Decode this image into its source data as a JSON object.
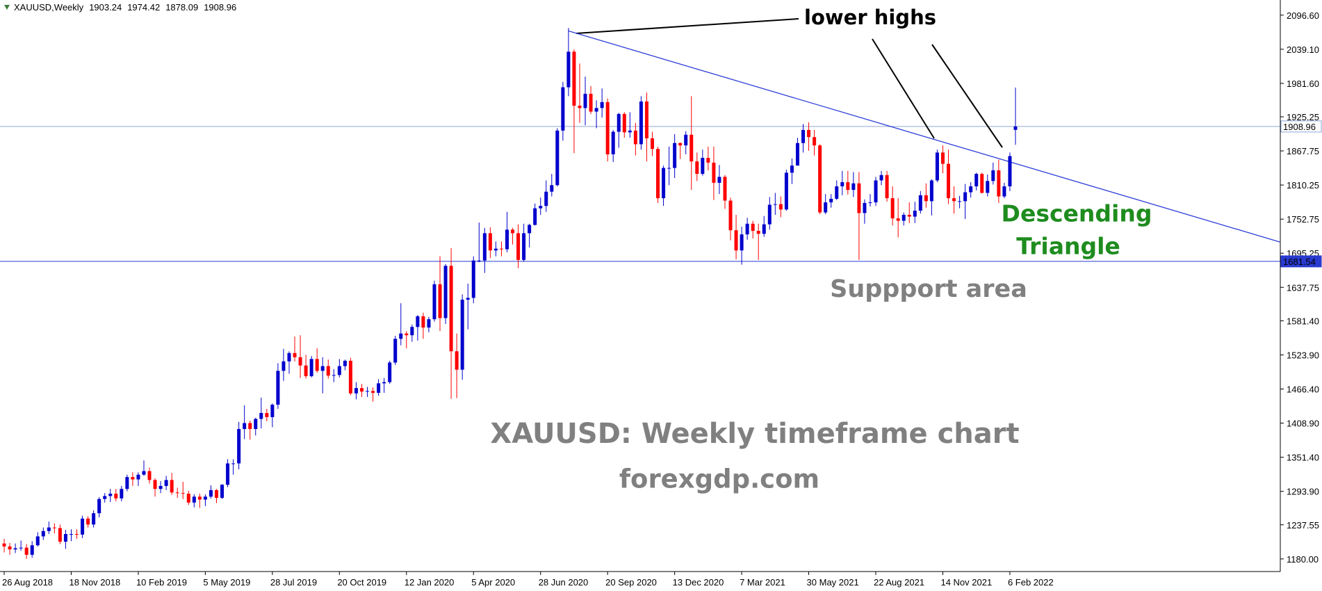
{
  "chart_data": {
    "type": "candlestick",
    "title": "XAUUSD,Weekly",
    "categories": [
      "26 Aug 2018",
      null,
      null,
      null,
      null,
      null,
      null,
      null,
      null,
      null,
      null,
      null,
      "18 Nov 2018",
      null,
      null,
      null,
      null,
      null,
      null,
      null,
      null,
      null,
      null,
      null,
      "10 Feb 2019",
      null,
      null,
      null,
      null,
      null,
      null,
      null,
      null,
      null,
      null,
      null,
      "5 May 2019",
      null,
      null,
      null,
      null,
      null,
      null,
      null,
      null,
      null,
      null,
      null,
      "28 Jul 2019",
      null,
      null,
      null,
      null,
      null,
      null,
      null,
      null,
      null,
      null,
      null,
      "20 Oct 2019",
      null,
      null,
      null,
      null,
      null,
      null,
      null,
      null,
      null,
      null,
      null,
      "12 Jan 2020",
      null,
      null,
      null,
      null,
      null,
      null,
      null,
      null,
      null,
      null,
      null,
      "5 Apr 2020",
      null,
      null,
      null,
      null,
      null,
      null,
      null,
      null,
      null,
      null,
      null,
      "28 Jun 2020",
      null,
      null,
      null,
      null,
      null,
      null,
      null,
      null,
      null,
      null,
      null,
      "20 Sep 2020",
      null,
      null,
      null,
      null,
      null,
      null,
      null,
      null,
      null,
      null,
      null,
      "13 Dec 2020",
      null,
      null,
      null,
      null,
      null,
      null,
      null,
      null,
      null,
      null,
      null,
      "7 Mar 2021",
      null,
      null,
      null,
      null,
      null,
      null,
      null,
      null,
      null,
      null,
      null,
      "30 May 2021",
      null,
      null,
      null,
      null,
      null,
      null,
      null,
      null,
      null,
      null,
      null,
      "22 Aug 2021",
      null,
      null,
      null,
      null,
      null,
      null,
      null,
      null,
      null,
      null,
      null,
      "14 Nov 2021",
      null,
      null,
      null,
      null,
      null,
      null,
      null,
      null,
      null,
      null,
      null,
      "6 Feb 2022",
      null
    ],
    "open": [
      1206,
      1201,
      1196,
      1198,
      1199,
      1187,
      1203,
      1218,
      1227,
      1233,
      1232,
      1209,
      1222,
      1222,
      1221,
      1248,
      1238,
      1257,
      1281,
      1286,
      1290,
      1282,
      1298,
      1318,
      1314,
      1322,
      1328,
      1313,
      1298,
      1303,
      1313,
      1292,
      1291,
      1290,
      1275,
      1285,
      1280,
      1285,
      1296,
      1283,
      1305,
      1341,
      1341,
      1399,
      1409,
      1399,
      1416,
      1426,
      1419,
      1440,
      1497,
      1513,
      1527,
      1520,
      1506,
      1488,
      1517,
      1497,
      1505,
      1489,
      1490,
      1505,
      1514,
      1459,
      1468,
      1462,
      1463,
      1460,
      1476,
      1478,
      1511,
      1551,
      1560,
      1557,
      1571,
      1589,
      1570,
      1584,
      1643,
      1586,
      1674,
      1530,
      1499,
      1617,
      1620,
      1683,
      1683,
      1729,
      1700,
      1703,
      1702,
      1735,
      1729,
      1684,
      1729,
      1743,
      1771,
      1775,
      1799,
      1810,
      1902,
      1975,
      2035,
      1944,
      1940,
      1964,
      1934,
      1940,
      1950,
      1862,
      1900,
      1930,
      1899,
      1902,
      1879,
      1951,
      1889,
      1871,
      1788,
      1839,
      1839,
      1881,
      1877,
      1895,
      1850,
      1829,
      1856,
      1848,
      1814,
      1824,
      1784,
      1734,
      1700,
      1727,
      1745,
      1733,
      1728,
      1744,
      1777,
      1778,
      1769,
      1831,
      1843,
      1881,
      1903,
      1891,
      1877,
      1764,
      1781,
      1787,
      1808,
      1815,
      1802,
      1813,
      1763,
      1780,
      1781,
      1818,
      1827,
      1788,
      1754,
      1750,
      1760,
      1757,
      1767,
      1793,
      1783,
      1818,
      1865,
      1846,
      1788,
      1783,
      1783,
      1798,
      1808,
      1829,
      1797,
      1817,
      1835,
      1791,
      1808,
      1903.24
    ],
    "high": [
      1214,
      1207,
      1206,
      1211,
      1205,
      1210,
      1225,
      1233,
      1243,
      1240,
      1238,
      1229,
      1230,
      1230,
      1253,
      1252,
      1262,
      1284,
      1291,
      1298,
      1298,
      1303,
      1322,
      1326,
      1326,
      1346,
      1334,
      1316,
      1311,
      1320,
      1325,
      1300,
      1310,
      1295,
      1289,
      1290,
      1289,
      1304,
      1298,
      1306,
      1348,
      1348,
      1411,
      1439,
      1413,
      1418,
      1452,
      1433,
      1442,
      1510,
      1534,
      1530,
      1555,
      1557,
      1524,
      1522,
      1535,
      1520,
      1516,
      1500,
      1517,
      1516,
      1519,
      1478,
      1475,
      1470,
      1469,
      1483,
      1485,
      1514,
      1556,
      1611,
      1564,
      1575,
      1591,
      1595,
      1588,
      1649,
      1690,
      1677,
      1704,
      1560,
      1626,
      1644,
      1690,
      1747,
      1738,
      1739,
      1715,
      1715,
      1765,
      1738,
      1744,
      1745,
      1745,
      1779,
      1789,
      1818,
      1829,
      1906,
      1984,
      2075,
      2039,
      2015,
      1993,
      1977,
      1953,
      1973,
      1956,
      1903,
      1932,
      1933,
      1933,
      1915,
      1960,
      1966,
      1900,
      1875,
      1843,
      1875,
      1896,
      1882,
      1901,
      1960,
      1865,
      1870,
      1875,
      1875,
      1844,
      1827,
      1789,
      1760,
      1740,
      1755,
      1750,
      1745,
      1758,
      1790,
      1797,
      1791,
      1836,
      1855,
      1890,
      1913,
      1916,
      1903,
      1879,
      1795,
      1795,
      1818,
      1834,
      1834,
      1832,
      1832,
      1786,
      1795,
      1824,
      1834,
      1834,
      1808,
      1788,
      1764,
      1781,
      1782,
      1800,
      1813,
      1820,
      1870,
      1877,
      1870,
      1808,
      1792,
      1812,
      1815,
      1831,
      1831,
      1828,
      1848,
      1853,
      1814,
      1865,
      1974.42
    ],
    "low": [
      1191,
      1187,
      1190,
      1194,
      1180,
      1182,
      1201,
      1212,
      1222,
      1223,
      1205,
      1197,
      1210,
      1214,
      1215,
      1233,
      1233,
      1250,
      1275,
      1276,
      1277,
      1277,
      1294,
      1303,
      1303,
      1320,
      1307,
      1285,
      1291,
      1296,
      1288,
      1283,
      1281,
      1271,
      1267,
      1266,
      1269,
      1282,
      1274,
      1281,
      1301,
      1322,
      1331,
      1382,
      1381,
      1388,
      1400,
      1412,
      1402,
      1433,
      1480,
      1492,
      1513,
      1485,
      1484,
      1486,
      1494,
      1459,
      1484,
      1478,
      1486,
      1498,
      1456,
      1449,
      1453,
      1453,
      1445,
      1455,
      1460,
      1475,
      1507,
      1540,
      1535,
      1546,
      1548,
      1551,
      1562,
      1580,
      1564,
      1576,
      1450,
      1451,
      1482,
      1567,
      1611,
      1680,
      1662,
      1687,
      1690,
      1690,
      1697,
      1710,
      1670,
      1681,
      1705,
      1742,
      1760,
      1765,
      1791,
      1808,
      1885,
      1960,
      1864,
      1915,
      1911,
      1930,
      1906,
      1924,
      1850,
      1849,
      1873,
      1890,
      1890,
      1860,
      1870,
      1850,
      1859,
      1780,
      1775,
      1810,
      1822,
      1854,
      1862,
      1802,
      1817,
      1826,
      1835,
      1785,
      1795,
      1770,
      1717,
      1685,
      1676,
      1718,
      1720,
      1684,
      1723,
      1735,
      1760,
      1756,
      1767,
      1812,
      1843,
      1865,
      1868,
      1860,
      1761,
      1761,
      1772,
      1785,
      1793,
      1794,
      1790,
      1684,
      1745,
      1774,
      1775,
      1810,
      1782,
      1742,
      1722,
      1742,
      1746,
      1746,
      1762,
      1772,
      1759,
      1815,
      1830,
      1778,
      1762,
      1771,
      1753,
      1789,
      1801,
      1796,
      1791,
      1811,
      1780,
      1788,
      1800,
      1878.09
    ],
    "close": [
      1201,
      1196,
      1198,
      1199,
      1187,
      1203,
      1218,
      1227,
      1233,
      1232,
      1209,
      1222,
      1222,
      1221,
      1248,
      1238,
      1257,
      1281,
      1286,
      1290,
      1282,
      1298,
      1318,
      1314,
      1322,
      1328,
      1313,
      1298,
      1303,
      1313,
      1292,
      1291,
      1290,
      1275,
      1285,
      1280,
      1285,
      1296,
      1283,
      1305,
      1341,
      1341,
      1399,
      1409,
      1399,
      1416,
      1426,
      1419,
      1440,
      1497,
      1513,
      1527,
      1520,
      1506,
      1488,
      1517,
      1497,
      1505,
      1489,
      1490,
      1505,
      1514,
      1459,
      1468,
      1462,
      1463,
      1460,
      1476,
      1478,
      1511,
      1551,
      1560,
      1557,
      1571,
      1589,
      1570,
      1584,
      1643,
      1586,
      1674,
      1530,
      1499,
      1617,
      1620,
      1683,
      1683,
      1729,
      1700,
      1703,
      1702,
      1735,
      1729,
      1684,
      1729,
      1743,
      1771,
      1775,
      1799,
      1810,
      1902,
      1975,
      2035,
      1944,
      1940,
      1964,
      1934,
      1940,
      1950,
      1862,
      1900,
      1930,
      1899,
      1902,
      1879,
      1951,
      1889,
      1871,
      1788,
      1839,
      1839,
      1881,
      1877,
      1895,
      1850,
      1829,
      1856,
      1848,
      1814,
      1824,
      1784,
      1734,
      1700,
      1727,
      1745,
      1733,
      1728,
      1744,
      1777,
      1778,
      1769,
      1831,
      1843,
      1881,
      1903,
      1891,
      1877,
      1764,
      1781,
      1787,
      1808,
      1815,
      1802,
      1813,
      1763,
      1780,
      1781,
      1818,
      1827,
      1788,
      1754,
      1750,
      1760,
      1757,
      1767,
      1793,
      1783,
      1818,
      1865,
      1846,
      1788,
      1783,
      1783,
      1798,
      1808,
      1829,
      1797,
      1817,
      1835,
      1791,
      1808,
      1859,
      1908.96
    ],
    "up_color": "#0000cd",
    "down_color": "#ff0000",
    "xlim": [
      -0.75,
      228.4
    ],
    "ylim": [
      1158.75,
      2122.1
    ],
    "yticks": [
      {
        "value": 2096.6,
        "label": "2096.60"
      },
      {
        "value": 2039.1,
        "label": "2039.10"
      },
      {
        "value": 1981.6,
        "label": "1981.60"
      },
      1925.25,
      1867.75,
      1810.25,
      1752.75,
      1695.25,
      1637.75,
      {
        "value": 1581.4,
        "label": "1581.40"
      },
      {
        "value": 1523.9,
        "label": "1523.90"
      },
      {
        "value": 1466.4,
        "label": "1466.40"
      },
      {
        "value": 1408.9,
        "label": "1408.90"
      },
      {
        "value": 1351.4,
        "label": "1351.40"
      },
      {
        "value": 1293.9,
        "label": "1293.90"
      },
      1237.55,
      {
        "value": 1180,
        "label": "1180.00"
      }
    ],
    "hlines": [
      {
        "value": 1908.96,
        "color": "#8ea8d8",
        "label_bg": "#ffffff",
        "label_fg": "#000000"
      },
      {
        "value": 1681.54,
        "color": "#2a3bd0",
        "label_bg": "#2a3bd0",
        "label_fg": "#ffffff"
      }
    ],
    "trendline": {
      "x": [
        101,
        228.4
      ],
      "y": [
        2070,
        1714
      ],
      "color": "#2f3fd8"
    },
    "annotations": {
      "lower_highs": "lower highs",
      "pattern": [
        "Descending",
        "Triangle"
      ],
      "support": "Suppport area",
      "caption": "XAUUSD: Weekly timeframe chart",
      "source": "forexgdp.com"
    }
  }
}
